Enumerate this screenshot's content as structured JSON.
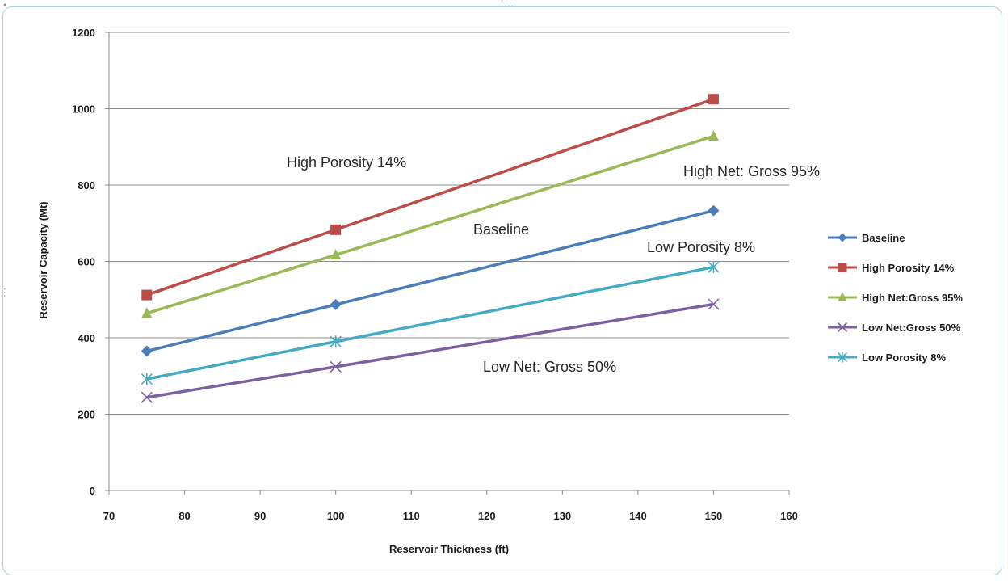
{
  "chart_data": {
    "type": "line",
    "title": "",
    "xlabel": "Reservoir Thickness  (ft)",
    "ylabel": "Reservoir Capacity  (Mt)",
    "xlim": [
      70,
      160
    ],
    "ylim": [
      0,
      1200
    ],
    "x_ticks": [
      70,
      80,
      90,
      100,
      110,
      120,
      130,
      140,
      150,
      160
    ],
    "y_ticks": [
      0,
      200,
      400,
      600,
      800,
      1000,
      1200
    ],
    "grid": "horizontal major gridlines",
    "legend_position": "right",
    "x": [
      75,
      100,
      150
    ],
    "series": [
      {
        "name": "Baseline",
        "values": [
          365,
          487,
          733
        ],
        "color": "#4a7ebb",
        "marker": "diamond-icon"
      },
      {
        "name": "High Porosity 14%",
        "values": [
          512,
          683,
          1025
        ],
        "color": "#be4b48",
        "marker": "square-icon"
      },
      {
        "name": "High Net:Gross 95%",
        "values": [
          464,
          617,
          928
        ],
        "color": "#98b954",
        "marker": "triangle-icon"
      },
      {
        "name": "Low Net:Gross 50%",
        "values": [
          244,
          324,
          488
        ],
        "color": "#7d60a0",
        "marker": "x-icon"
      },
      {
        "name": "Low Porosity 8%",
        "values": [
          292,
          390,
          585
        ],
        "color": "#46aac5",
        "marker": "asterisk-icon"
      }
    ],
    "annotations": [
      {
        "text": "High Porosity 14%"
      },
      {
        "text": "High Net: Gross 95%"
      },
      {
        "text": "Baseline"
      },
      {
        "text": "Low Porosity 8%"
      },
      {
        "text": "Low Net: Gross 50%"
      }
    ]
  }
}
